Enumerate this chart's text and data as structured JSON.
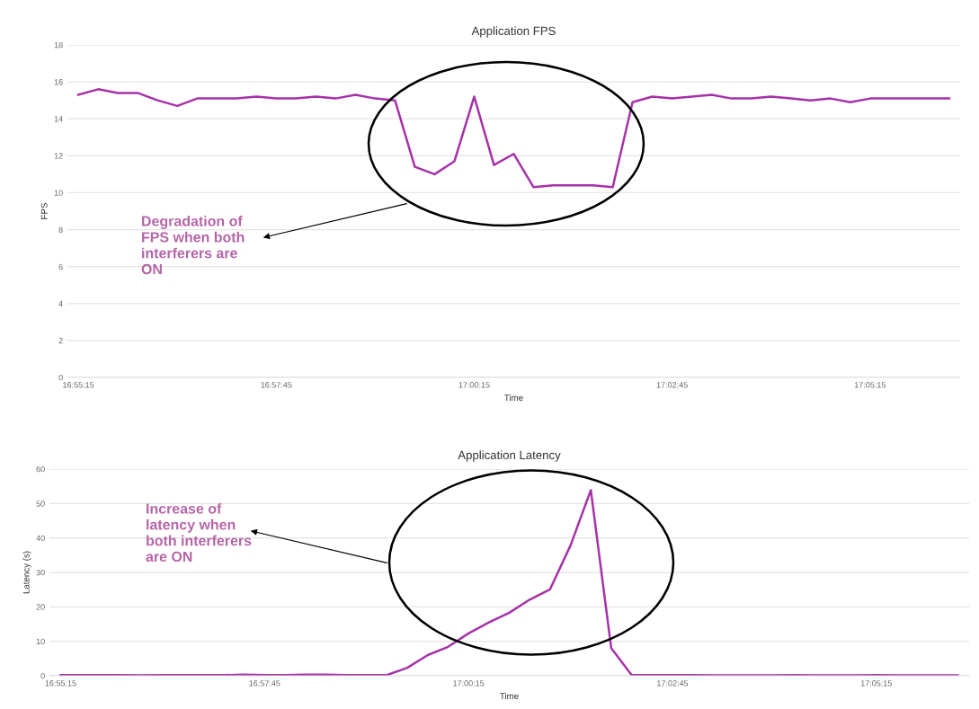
{
  "chart_data": [
    {
      "type": "line",
      "title": "Application FPS",
      "xlabel": "Time",
      "ylabel": "FPS",
      "categories": [
        "16:55:15",
        null,
        null,
        null,
        null,
        null,
        null,
        null,
        null,
        null,
        "16:57:45",
        null,
        null,
        null,
        null,
        null,
        null,
        null,
        null,
        null,
        "17:00:15",
        null,
        null,
        null,
        null,
        null,
        null,
        null,
        null,
        null,
        "17:02:45",
        null,
        null,
        null,
        null,
        null,
        null,
        null,
        null,
        null,
        "17:05:15",
        null,
        null,
        null,
        null
      ],
      "series": [
        {
          "color": "#a632a8",
          "values": [
            15.3,
            15.6,
            15.4,
            15.4,
            15.0,
            14.7,
            15.1,
            15.1,
            15.1,
            15.2,
            15.1,
            15.1,
            15.2,
            15.1,
            15.3,
            15.1,
            15.0,
            11.4,
            11.0,
            11.7,
            15.2,
            11.5,
            12.1,
            10.3,
            10.4,
            10.4,
            10.4,
            10.3,
            14.9,
            15.2,
            15.1,
            15.2,
            15.3,
            15.1,
            15.1,
            15.2,
            15.1,
            15.0,
            15.1,
            14.9,
            15.1,
            15.1,
            15.1,
            15.1,
            15.1
          ]
        }
      ],
      "ylim": [
        0,
        18
      ],
      "yticks": [
        0,
        2,
        4,
        6,
        8,
        10,
        12,
        14,
        16,
        18
      ],
      "grid": "y",
      "annotations": [
        "Degradation of\nFPS when both\ninterferers are\nON"
      ]
    },
    {
      "type": "line",
      "title": "Application Latency",
      "xlabel": "Time",
      "ylabel": "Latency (s)",
      "categories": [
        "16:55:15",
        null,
        null,
        null,
        null,
        null,
        null,
        null,
        null,
        null,
        "16:57:45",
        null,
        null,
        null,
        null,
        null,
        null,
        null,
        null,
        null,
        "17:00:15",
        null,
        null,
        null,
        null,
        null,
        null,
        null,
        null,
        null,
        "17:02:45",
        null,
        null,
        null,
        null,
        null,
        null,
        null,
        null,
        null,
        "17:05:15",
        null,
        null,
        null,
        null
      ],
      "series": [
        {
          "color": "#a632a8",
          "values": [
            0.2,
            0.2,
            0.2,
            0.2,
            0.1,
            0.2,
            0.2,
            0.2,
            0.2,
            0.3,
            0.2,
            0.2,
            0.3,
            0.3,
            0.2,
            0.2,
            0.2,
            2.3,
            6.0,
            8.4,
            12.3,
            15.5,
            18.3,
            22.1,
            25.1,
            37.8,
            53.9,
            8.0,
            0.2,
            0.2,
            0.2,
            0.2,
            0.1,
            0.1,
            0.1,
            0.1,
            0.2,
            0.1,
            0.1,
            0.1,
            0.2,
            0.1,
            0.1,
            0.1,
            0.1
          ]
        }
      ],
      "ylim": [
        0,
        60
      ],
      "yticks": [
        0,
        10,
        20,
        30,
        40,
        50,
        60
      ],
      "grid": "y",
      "annotations": [
        "Increase of\nlatency when\nboth interferers\nare ON"
      ]
    }
  ]
}
